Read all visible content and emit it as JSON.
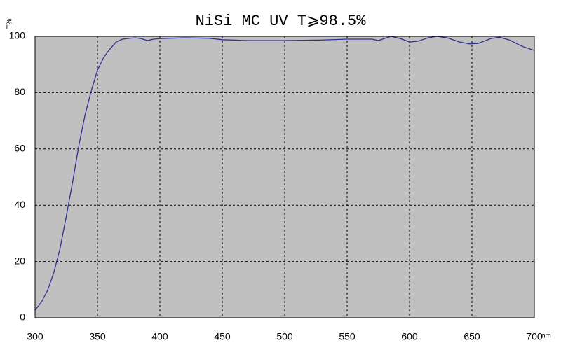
{
  "chart_data": {
    "type": "line",
    "title": "NiSi MC UV  T⩾98.5%",
    "y_label": "T%",
    "x_label": "nm",
    "x": [
      300,
      305,
      310,
      315,
      320,
      325,
      330,
      335,
      340,
      345,
      350,
      355,
      360,
      365,
      370,
      380,
      385,
      390,
      395,
      400,
      420,
      440,
      450,
      470,
      500,
      530,
      550,
      570,
      575,
      585,
      592,
      600,
      607,
      615,
      622,
      630,
      640,
      648,
      655,
      665,
      672,
      680,
      690,
      700
    ],
    "values": [
      2.7,
      5.5,
      9.7,
      16,
      24.6,
      36,
      48,
      61,
      72,
      80.6,
      88,
      92.5,
      95.5,
      98,
      99,
      99.5,
      99.2,
      98.5,
      99,
      99.2,
      99.5,
      99.3,
      98.8,
      98.5,
      98.5,
      98.7,
      99,
      99,
      98.5,
      100,
      99.3,
      98,
      98.3,
      99.5,
      100,
      99.5,
      98,
      97.3,
      97.5,
      99.2,
      99.7,
      98.7,
      96.5,
      95
    ],
    "color": "#2e3192",
    "xlim": [
      300,
      700
    ],
    "xticks": [
      300,
      350,
      400,
      450,
      500,
      550,
      600,
      650,
      700
    ],
    "ylim": [
      0,
      100
    ],
    "yticks": [
      0,
      20,
      40,
      60,
      80,
      100
    ],
    "grid": true
  }
}
